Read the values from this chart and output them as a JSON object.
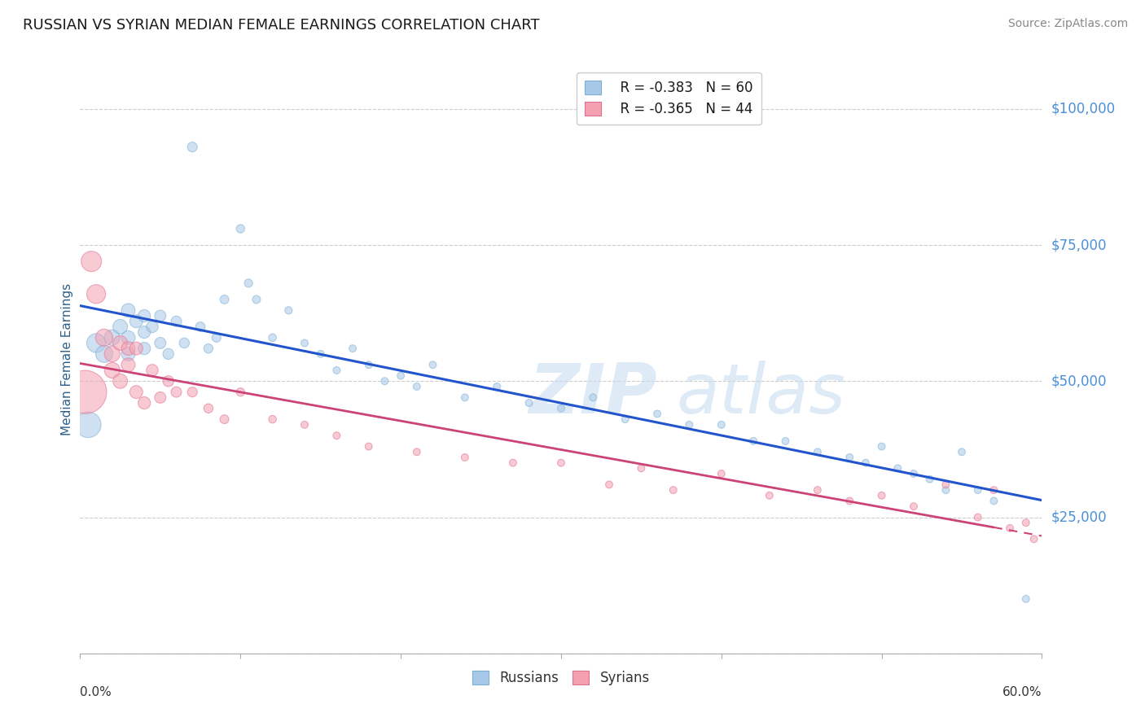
{
  "title": "RUSSIAN VS SYRIAN MEDIAN FEMALE EARNINGS CORRELATION CHART",
  "source": "Source: ZipAtlas.com",
  "ylabel": "Median Female Earnings",
  "yticks": [
    0,
    25000,
    50000,
    75000,
    100000
  ],
  "ytick_labels": [
    "",
    "$25,000",
    "$50,000",
    "$75,000",
    "$100,000"
  ],
  "xlim": [
    0.0,
    0.6
  ],
  "ylim": [
    0,
    108000
  ],
  "legend_russian": "R = -0.383   N = 60",
  "legend_syrian": "R = -0.365   N = 44",
  "watermark_zip": "ZIP",
  "watermark_atlas": "atlas",
  "title_color": "#1a1a1a",
  "title_fontsize": 13,
  "axis_label_color": "#2c5f8a",
  "ytick_color": "#4a90d9",
  "source_color": "#888888",
  "russian_color": "#a8c8e8",
  "syrian_color": "#f4a0b0",
  "russian_edge_color": "#7bafd4",
  "syrian_edge_color": "#e07090",
  "russian_line_color": "#2255cc",
  "syrian_line_color": "#cc4477",
  "background_color": "#ffffff",
  "grid_color": "#cccccc",
  "russians_x": [
    0.005,
    0.01,
    0.015,
    0.02,
    0.025,
    0.03,
    0.03,
    0.03,
    0.035,
    0.04,
    0.04,
    0.04,
    0.045,
    0.05,
    0.05,
    0.055,
    0.06,
    0.065,
    0.07,
    0.075,
    0.08,
    0.085,
    0.09,
    0.1,
    0.105,
    0.11,
    0.12,
    0.13,
    0.14,
    0.15,
    0.16,
    0.17,
    0.18,
    0.19,
    0.2,
    0.21,
    0.22,
    0.24,
    0.26,
    0.28,
    0.3,
    0.32,
    0.34,
    0.36,
    0.38,
    0.4,
    0.42,
    0.44,
    0.46,
    0.48,
    0.49,
    0.5,
    0.51,
    0.52,
    0.53,
    0.54,
    0.55,
    0.56,
    0.57,
    0.59
  ],
  "russians_y": [
    42000,
    57000,
    55000,
    58000,
    60000,
    63000,
    58000,
    55000,
    61000,
    62000,
    59000,
    56000,
    60000,
    62000,
    57000,
    55000,
    61000,
    57000,
    93000,
    60000,
    56000,
    58000,
    65000,
    78000,
    68000,
    65000,
    58000,
    63000,
    57000,
    55000,
    52000,
    56000,
    53000,
    50000,
    51000,
    49000,
    53000,
    47000,
    49000,
    46000,
    45000,
    47000,
    43000,
    44000,
    42000,
    42000,
    39000,
    39000,
    37000,
    36000,
    35000,
    38000,
    34000,
    33000,
    32000,
    30000,
    37000,
    30000,
    28000,
    10000
  ],
  "russians_size_scale": [
    1.0,
    0.7,
    0.7,
    0.7,
    0.7,
    0.7,
    0.7,
    0.7,
    0.7,
    0.7,
    0.7,
    0.7,
    0.7,
    0.7,
    0.7,
    0.7,
    0.7,
    0.7,
    0.7,
    0.7,
    0.7,
    0.7,
    0.7,
    0.7,
    0.7,
    0.7,
    0.7,
    0.7,
    0.7,
    0.7,
    0.7,
    0.7,
    0.7,
    0.7,
    0.7,
    0.7,
    0.7,
    0.7,
    0.7,
    0.7,
    0.7,
    0.7,
    0.7,
    0.7,
    0.7,
    0.7,
    0.7,
    0.7,
    0.7,
    0.7,
    0.7,
    0.7,
    0.7,
    0.7,
    0.7,
    0.7,
    0.7,
    0.7,
    0.7,
    0.7
  ],
  "syrians_x": [
    0.003,
    0.007,
    0.01,
    0.015,
    0.02,
    0.02,
    0.025,
    0.025,
    0.03,
    0.03,
    0.035,
    0.035,
    0.04,
    0.045,
    0.05,
    0.055,
    0.06,
    0.07,
    0.08,
    0.09,
    0.1,
    0.12,
    0.14,
    0.16,
    0.18,
    0.21,
    0.24,
    0.27,
    0.3,
    0.33,
    0.35,
    0.37,
    0.4,
    0.43,
    0.46,
    0.48,
    0.5,
    0.52,
    0.54,
    0.56,
    0.57,
    0.58,
    0.59,
    0.595
  ],
  "syrians_y": [
    48000,
    72000,
    66000,
    58000,
    55000,
    52000,
    57000,
    50000,
    56000,
    53000,
    56000,
    48000,
    46000,
    52000,
    47000,
    50000,
    48000,
    48000,
    45000,
    43000,
    48000,
    43000,
    42000,
    40000,
    38000,
    37000,
    36000,
    35000,
    35000,
    31000,
    34000,
    30000,
    33000,
    29000,
    30000,
    28000,
    29000,
    27000,
    31000,
    25000,
    30000,
    23000,
    24000,
    21000
  ],
  "syrians_size_scale": [
    2.5,
    0.7,
    0.7,
    0.7,
    0.7,
    0.7,
    0.7,
    0.7,
    0.7,
    0.7,
    0.7,
    0.7,
    0.7,
    0.7,
    0.7,
    0.7,
    0.7,
    0.7,
    0.7,
    0.7,
    0.7,
    0.7,
    0.7,
    0.7,
    0.7,
    0.7,
    0.7,
    0.7,
    0.7,
    0.7,
    0.7,
    0.7,
    0.7,
    0.7,
    0.7,
    0.7,
    0.7,
    0.7,
    0.7,
    0.7,
    0.7,
    0.7,
    0.7,
    0.7
  ]
}
